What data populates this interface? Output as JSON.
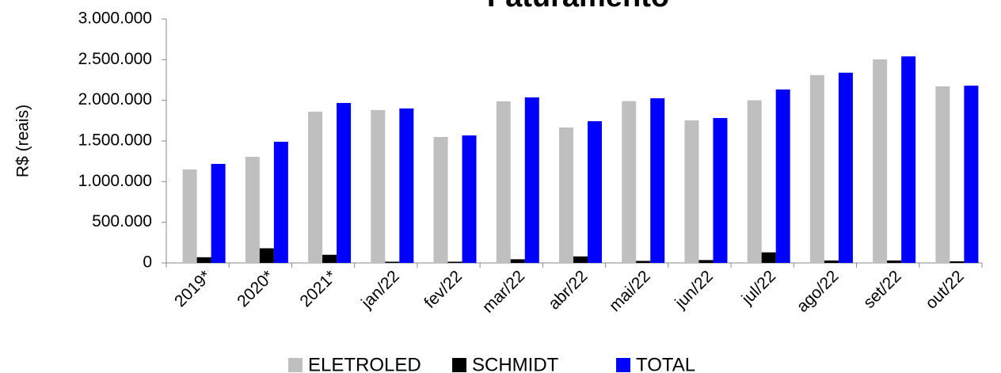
{
  "chart_data": {
    "type": "bar",
    "title": "Faturamento",
    "y_label": "R$ (reais)",
    "categories": [
      "2019*",
      "2020*",
      "2021*",
      "jan/22",
      "fev/22",
      "mar/22",
      "abr/22",
      "mai/22",
      "jun/22",
      "jul/22",
      "ago/22",
      "set/22",
      "out/22"
    ],
    "series": [
      {
        "name": "ELETROLED",
        "color": "#bfbfbf",
        "values": [
          1150000,
          1305000,
          1860000,
          1880000,
          1549000,
          1987000,
          1666000,
          1990000,
          1753000,
          2000000,
          2310000,
          2503000,
          2172000
        ]
      },
      {
        "name": "SCHMIDT",
        "color": "#000000",
        "values": [
          70000,
          180000,
          100000,
          15000,
          15000,
          45000,
          80000,
          25000,
          35000,
          130000,
          30000,
          30000,
          20000
        ]
      },
      {
        "name": "TOTAL",
        "color": "#0000ff",
        "values": [
          1218000,
          1490000,
          1967000,
          1900000,
          1568000,
          2036000,
          1743000,
          2025000,
          1782000,
          2133000,
          2340000,
          2540000,
          2180000
        ]
      }
    ],
    "ylim": [
      0,
      3000000
    ],
    "yticks": [
      0,
      {
        "value": 500000,
        "label": "500.000"
      },
      {
        "value": 1000000,
        "label": "1.000.000"
      },
      {
        "value": 1500000,
        "label": "1.500.000"
      },
      {
        "value": 2000000,
        "label": "2.000.000"
      },
      {
        "value": 2500000,
        "label": "2.500.000"
      },
      {
        "value": 3000000,
        "label": "3.000.000"
      }
    ],
    "legend": "bottom"
  }
}
